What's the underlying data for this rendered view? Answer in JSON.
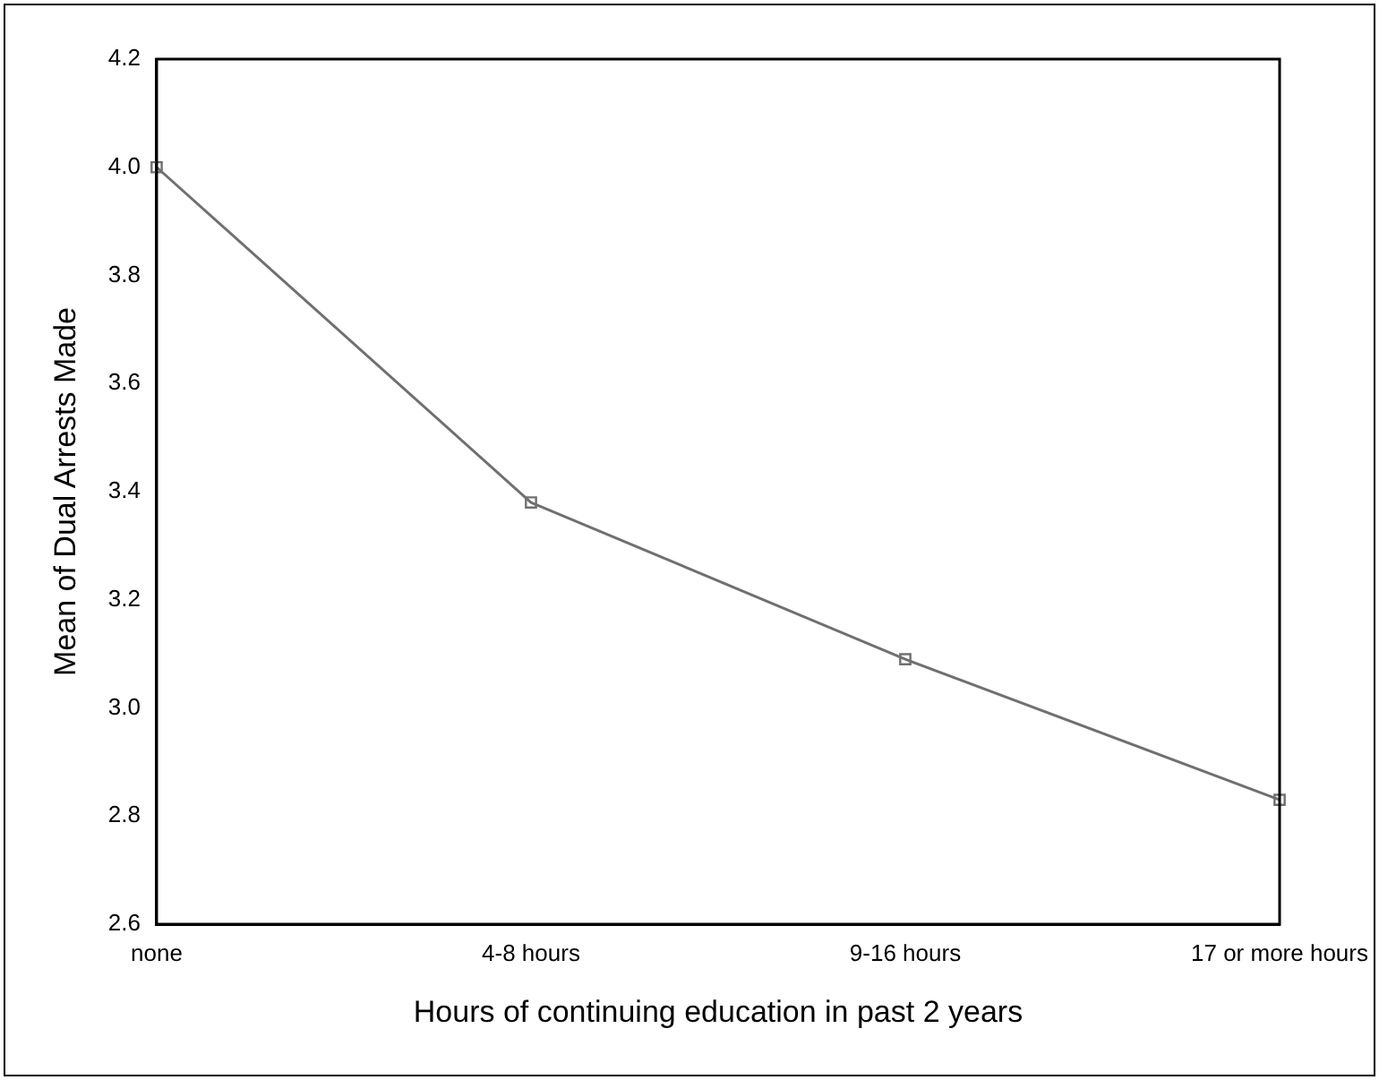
{
  "chart_data": {
    "type": "line",
    "xlabel": "Hours of continuing education in past 2 years",
    "ylabel": "Mean of Dual Arrests Made",
    "categories": [
      "none",
      "4-8 hours",
      "9-16 hours",
      "17 or more hours"
    ],
    "series": [
      {
        "color": "#707070",
        "values": [
          4.0,
          3.38,
          3.09,
          2.83
        ]
      }
    ],
    "ylim": [
      2.6,
      4.2
    ],
    "yticks": [
      2.6,
      2.8,
      {
        "value": 3,
        "label": "3.0"
      },
      3.2,
      3.4,
      3.6,
      3.8,
      {
        "value": 4,
        "label": "4.0"
      },
      4.2
    ],
    "grid": false,
    "legend": false,
    "marker": "square",
    "line_style": "solid"
  }
}
